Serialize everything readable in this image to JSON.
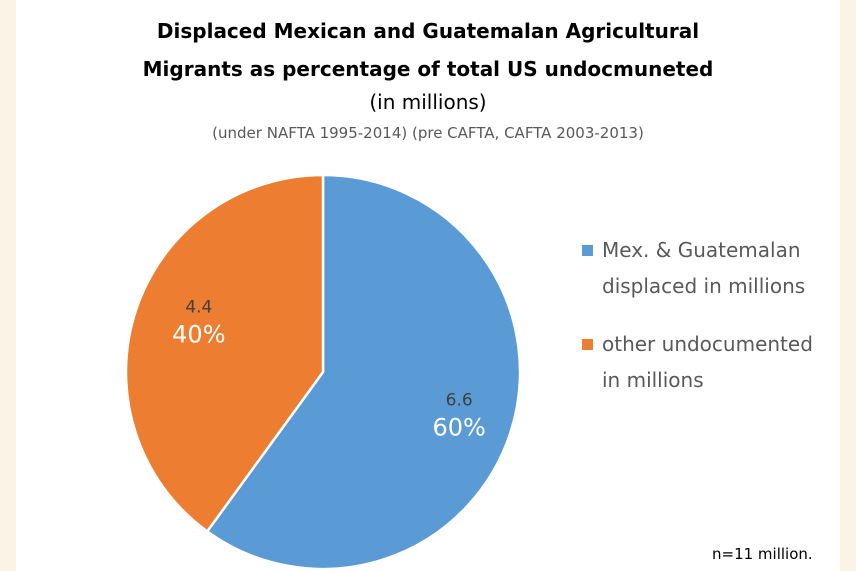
{
  "chart_data": {
    "type": "pie",
    "title": "Displaced Mexican and Guatemalan Agricultural Migrants as percentage of total US undocmuneted",
    "title_lines": [
      "Displaced Mexican and Guatemalan Agricultural",
      "Migrants as percentage of total US undocmuneted"
    ],
    "subtitle_lines": [
      "(in millions)",
      "(under NAFTA 1995-2014) (pre CAFTA, CAFTA 2003-2013)"
    ],
    "slices": [
      {
        "label": "Mex. & Guatemalan displaced in millions",
        "legend_lines": [
          "Mex. & Guatemalan",
          "displaced in millions"
        ],
        "value": 6.6,
        "value_label": "6.6",
        "percent_label": "60%",
        "color": "#5b9bd5"
      },
      {
        "label": "other undocumented in millions",
        "legend_lines": [
          "other undocumented",
          "in millions"
        ],
        "value": 4.4,
        "value_label": "4.4",
        "percent_label": "40%",
        "color": "#ed7d31"
      }
    ],
    "legend_position": "right",
    "note": "n=11 million."
  }
}
